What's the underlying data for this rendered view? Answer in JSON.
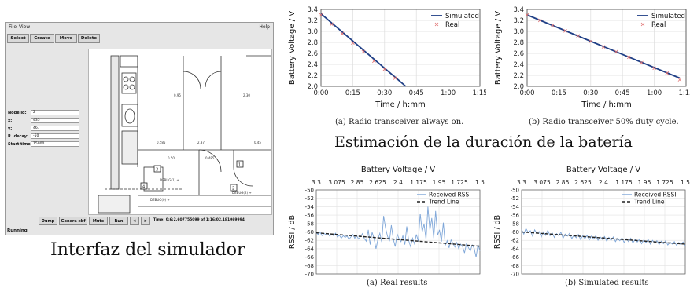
{
  "simulator": {
    "menu": [
      "File",
      "View"
    ],
    "help": "Help",
    "toolbar": [
      "Select",
      "Create",
      "Move",
      "Delete"
    ],
    "fields": [
      {
        "label": "Node id:",
        "value": "2"
      },
      {
        "label": "x:",
        "value": "435"
      },
      {
        "label": "y:",
        "value": "467"
      },
      {
        "label": "R. decay:",
        "value": "-50"
      },
      {
        "label": "Start time:",
        "value": "15000"
      }
    ],
    "bottom_buttons": [
      "Dump",
      "Genera xbf",
      "Mute",
      "Run",
      "<",
      ">"
    ],
    "time_text": "Time: 0:6:2.607755099 of 1:16:02.181069994",
    "status": "Running",
    "plan_labels": {
      "dim1": "0.585",
      "dim2": "2.37",
      "dim3": "0.45",
      "dim4": "2.30",
      "dim5": "0.95",
      "dim6": "0.485",
      "dim7": "0.50",
      "debug1": "DEBUG(1) +",
      "debug2": "DEBUG(2) +",
      "debug0": "DEBUG(0) +",
      "node1": "1",
      "node2": "2",
      "node3": "3",
      "node4": "4"
    }
  },
  "captions": {
    "simulator": "Interfaz del simulador",
    "battery_title": "Estimación de la duración de la batería",
    "a_top": "(a)  Radio transceiver always on.",
    "b_top": "(b)  Radio transceiver 50% duty cycle.",
    "a_bottom": "(a)  Real results",
    "b_bottom": "(b)  Simulated results"
  },
  "chart_data": [
    {
      "type": "line",
      "xlabel": "Time / h:mm",
      "ylabel": "Battery Voltage / V",
      "x_ticks": [
        "0:00",
        "0:15",
        "0:30",
        "0:45",
        "1:00",
        "1:15"
      ],
      "y_ticks": [
        "2.0",
        "2.2",
        "2.4",
        "2.6",
        "2.8",
        "3.0",
        "3.2",
        "3.4"
      ],
      "xlim_minutes": [
        0,
        75
      ],
      "ylim": [
        2.0,
        3.4
      ],
      "legend": [
        "Simulated",
        "Real"
      ],
      "series": [
        {
          "name": "Simulated",
          "x_minutes": [
            0,
            40
          ],
          "values": [
            3.32,
            2.0
          ],
          "color": "#1f3f86"
        },
        {
          "name": "Real",
          "x_minutes": [
            0,
            5,
            10,
            15,
            20,
            25,
            30,
            35
          ],
          "values": [
            3.3,
            3.13,
            2.96,
            2.79,
            2.63,
            2.46,
            2.31,
            2.15
          ],
          "color": "#e07070"
        }
      ]
    },
    {
      "type": "line",
      "xlabel": "Time / h:mm",
      "ylabel": "Battery Voltage / V",
      "x_ticks": [
        "0:00",
        "0:15",
        "0:30",
        "0:45",
        "1:00",
        "1:15"
      ],
      "y_ticks": [
        "2.0",
        "2.2",
        "2.4",
        "2.6",
        "2.8",
        "3.0",
        "3.2",
        "3.4"
      ],
      "xlim_minutes": [
        0,
        75
      ],
      "ylim": [
        2.0,
        3.4
      ],
      "legend": [
        "Simulated",
        "Real"
      ],
      "series": [
        {
          "name": "Simulated",
          "x_minutes": [
            0,
            72
          ],
          "values": [
            3.3,
            2.15
          ],
          "color": "#1f3f86"
        },
        {
          "name": "Real",
          "x_minutes": [
            0,
            6,
            12,
            18,
            24,
            30,
            36,
            42,
            48,
            54,
            60,
            66,
            72
          ],
          "values": [
            3.3,
            3.2,
            3.11,
            3.01,
            2.92,
            2.82,
            2.72,
            2.63,
            2.53,
            2.43,
            2.33,
            2.24,
            2.12
          ],
          "color": "#e07070"
        }
      ]
    },
    {
      "type": "line",
      "title": "Battery Voltage / V",
      "ylabel": "RSSI / dB",
      "x_ticks": [
        "3.3",
        "3.075",
        "2.85",
        "2.625",
        "2.4",
        "1.175",
        "1.95",
        "1.725",
        "1.5"
      ],
      "y_ticks": [
        "-50",
        "-52",
        "-54",
        "-56",
        "-58",
        "-60",
        "-62",
        "-64",
        "-66",
        "-68",
        "-70"
      ],
      "ylim": [
        -70,
        -50
      ],
      "legend": [
        "Received RSSI",
        "Trend Line"
      ],
      "series": [
        {
          "name": "Received RSSI",
          "color": "#7ea6d8",
          "values": [
            -60.2,
            -60.6,
            -60.1,
            -60.9,
            -60.3,
            -60.7,
            -60.4,
            -61.0,
            -60.5,
            -60.9,
            -60.3,
            -61.2,
            -60.8,
            -61.5,
            -60.9,
            -61.3,
            -61.0,
            -61.8,
            -61.2,
            -60.6,
            -61.5,
            -60.9,
            -61.7,
            -61.1,
            -60.4,
            -61.6,
            -62.2,
            -59.5,
            -63.0,
            -60.1,
            -61.5,
            -64.0,
            -61.8,
            -60.3,
            -62.4,
            -56.2,
            -59.1,
            -61.0,
            -62.2,
            -58.4,
            -61.7,
            -63.5,
            -60.5,
            -61.6,
            -62.3,
            -60.9,
            -63.0,
            -58.7,
            -62.1,
            -63.5,
            -61.5,
            -62.8,
            -60.6,
            -62.2,
            -55.6,
            -60.0,
            -58.1,
            -61.8,
            -54.0,
            -59.6,
            -56.7,
            -61.5,
            -55.0,
            -60.8,
            -59.5,
            -62.3,
            -57.8,
            -63.2,
            -62.1,
            -63.8,
            -61.9,
            -62.7,
            -63.6,
            -62.5,
            -64.0,
            -62.9,
            -63.5,
            -65.0,
            -62.8,
            -63.7,
            -64.5,
            -63.1,
            -63.9,
            -66.0,
            -63.0,
            -64.5
          ]
        },
        {
          "name": "Trend Line",
          "color": "#222222",
          "values": [
            -60.2,
            -63.4
          ]
        }
      ]
    },
    {
      "type": "line",
      "title": "Battery Voltage / V",
      "ylabel": "RSSI / dB",
      "x_ticks": [
        "3.3",
        "3.075",
        "2.85",
        "2.625",
        "2.4",
        "1.175",
        "1.95",
        "1.725",
        "1.5"
      ],
      "y_ticks": [
        "-50",
        "-52",
        "-54",
        "-56",
        "-58",
        "-60",
        "-62",
        "-64",
        "-66",
        "-68",
        "-70"
      ],
      "ylim": [
        -70,
        -50
      ],
      "legend": [
        "Received RSSI",
        "Trend Line"
      ],
      "series": [
        {
          "name": "Received RSSI",
          "color": "#7ea6d8",
          "values": [
            -59.4,
            -60.5,
            -59.2,
            -60.1,
            -59.7,
            -61.0,
            -59.5,
            -60.4,
            -59.9,
            -61.2,
            -60.0,
            -60.8,
            -59.6,
            -60.9,
            -60.2,
            -61.3,
            -60.4,
            -60.9,
            -60.1,
            -61.5,
            -60.5,
            -61.0,
            -60.3,
            -61.6,
            -60.7,
            -61.4,
            -60.6,
            -61.8,
            -60.9,
            -61.6,
            -60.8,
            -61.9,
            -61.0,
            -61.7,
            -60.9,
            -62.0,
            -61.2,
            -61.8,
            -61.1,
            -62.2,
            -61.3,
            -62.0,
            -61.2,
            -62.3,
            -61.5,
            -62.1,
            -61.4,
            -62.5,
            -61.6,
            -62.3,
            -61.5,
            -62.6,
            -61.8,
            -62.4,
            -61.7,
            -62.8,
            -61.9,
            -62.5,
            -61.8,
            -62.9,
            -62.0,
            -62.7,
            -62.1,
            -63.0,
            -62.2,
            -62.8,
            -62.1,
            -63.1,
            -62.4,
            -62.9,
            -62.3,
            -63.2,
            -62.5,
            -63.0,
            -62.4,
            -63.3
          ]
        },
        {
          "name": "Trend Line",
          "color": "#222222",
          "values": [
            -60.0,
            -62.9
          ]
        }
      ]
    }
  ]
}
